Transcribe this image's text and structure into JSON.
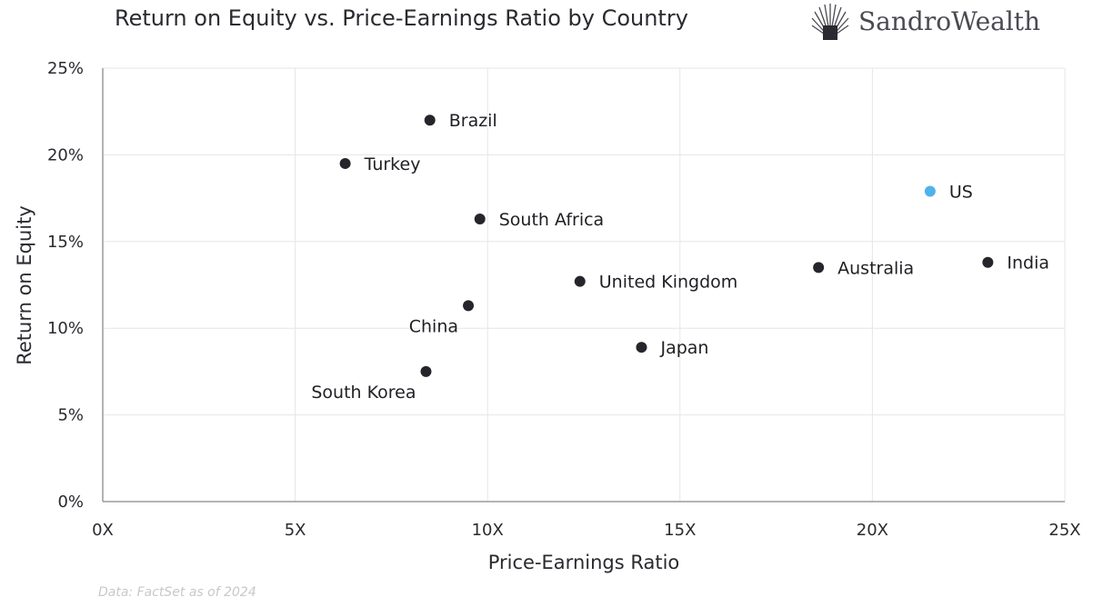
{
  "brand": {
    "name": "SandroWealth"
  },
  "source_note": "Data: FactSet as of 2024",
  "colors": {
    "point": "#25262b",
    "highlight": "#4fb3ea",
    "grid": "#e6e6e6",
    "axis": "#9a9a9a"
  },
  "chart_data": {
    "type": "scatter",
    "title": "Return on Equity vs. Price-Earnings Ratio by Country",
    "xlabel": "Price-Earnings Ratio",
    "ylabel": "Return on Equity",
    "xlim": [
      0,
      25
    ],
    "ylim": [
      0,
      25
    ],
    "x_ticks": [
      {
        "value": 0,
        "label": "0X"
      },
      {
        "value": 5,
        "label": "5X"
      },
      {
        "value": 10,
        "label": "10X"
      },
      {
        "value": 15,
        "label": "15X"
      },
      {
        "value": 20,
        "label": "20X"
      },
      {
        "value": 25,
        "label": "25X"
      }
    ],
    "y_ticks": [
      {
        "value": 0,
        "label": "0%"
      },
      {
        "value": 5,
        "label": "5%"
      },
      {
        "value": 10,
        "label": "10%"
      },
      {
        "value": 15,
        "label": "15%"
      },
      {
        "value": 20,
        "label": "20%"
      },
      {
        "value": 25,
        "label": "25%"
      }
    ],
    "grid": true,
    "points": [
      {
        "label": "Brazil",
        "x": 8.5,
        "y": 22.0,
        "label_side": "right",
        "highlight": false
      },
      {
        "label": "Turkey",
        "x": 6.3,
        "y": 19.5,
        "label_side": "right",
        "highlight": false
      },
      {
        "label": "South Africa",
        "x": 9.8,
        "y": 16.3,
        "label_side": "right",
        "highlight": false
      },
      {
        "label": "United Kingdom",
        "x": 12.4,
        "y": 12.7,
        "label_side": "right",
        "highlight": false
      },
      {
        "label": "China",
        "x": 9.5,
        "y": 11.3,
        "label_side": "below-left",
        "highlight": false
      },
      {
        "label": "South Korea",
        "x": 8.4,
        "y": 7.5,
        "label_side": "below-left",
        "highlight": false
      },
      {
        "label": "Japan",
        "x": 14.0,
        "y": 8.9,
        "label_side": "right",
        "highlight": false
      },
      {
        "label": "Australia",
        "x": 18.6,
        "y": 13.5,
        "label_side": "right",
        "highlight": false
      },
      {
        "label": "US",
        "x": 21.5,
        "y": 17.9,
        "label_side": "right",
        "highlight": true
      },
      {
        "label": "India",
        "x": 23.0,
        "y": 13.8,
        "label_side": "right",
        "highlight": false
      }
    ]
  }
}
